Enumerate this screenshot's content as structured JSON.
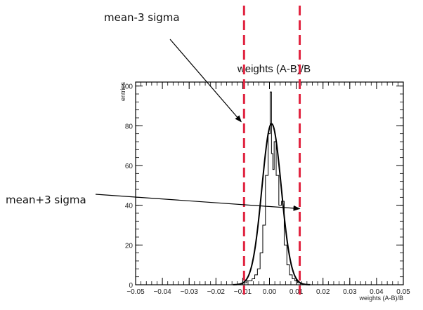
{
  "chart_data": {
    "type": "histogram",
    "title": "weights (A-B)/B",
    "xlabel": "weights (A-B)/B",
    "ylabel": "entries",
    "xlim": [
      -0.05,
      0.05
    ],
    "ylim": [
      0,
      102
    ],
    "xticks": [
      -0.05,
      -0.04,
      -0.03,
      -0.02,
      -0.01,
      0.0,
      0.01,
      0.02,
      0.03,
      0.04,
      0.05
    ],
    "xtick_labels": [
      "−0.05",
      "−0.04",
      "−0.03",
      "−0.02",
      "−0.01",
      "0.00",
      "0.01",
      "0.02",
      "0.03",
      "0.04",
      "0.05"
    ],
    "yticks": [
      0,
      20,
      40,
      60,
      80,
      100
    ],
    "ytick_labels": [
      "0",
      "20",
      "40",
      "60",
      "80",
      "100"
    ],
    "grid": false,
    "series": [
      {
        "kind": "histogram-steps",
        "bin_width": 0.001,
        "bins": [
          {
            "x": -0.009,
            "y": 1
          },
          {
            "x": -0.008,
            "y": 2
          },
          {
            "x": -0.007,
            "y": 2
          },
          {
            "x": -0.006,
            "y": 3
          },
          {
            "x": -0.005,
            "y": 5
          },
          {
            "x": -0.004,
            "y": 8
          },
          {
            "x": -0.003,
            "y": 16
          },
          {
            "x": -0.002,
            "y": 30
          },
          {
            "x": -0.001,
            "y": 55
          },
          {
            "x": 0.0,
            "y": 76
          },
          {
            "x": 0.0005,
            "y": 97
          },
          {
            "x": 0.001,
            "y": 66
          },
          {
            "x": 0.0015,
            "y": 58
          },
          {
            "x": 0.002,
            "y": 72
          },
          {
            "x": 0.003,
            "y": 55
          },
          {
            "x": 0.004,
            "y": 40
          },
          {
            "x": 0.005,
            "y": 42
          },
          {
            "x": 0.006,
            "y": 20
          },
          {
            "x": 0.007,
            "y": 10
          },
          {
            "x": 0.008,
            "y": 5
          },
          {
            "x": 0.009,
            "y": 3
          },
          {
            "x": 0.01,
            "y": 2
          },
          {
            "x": 0.011,
            "y": 1
          }
        ]
      },
      {
        "kind": "gaussian-fit",
        "mean": 0.0008,
        "sigma": 0.0036,
        "amplitude": 81
      }
    ],
    "vertical_lines": [
      {
        "x": -0.0095,
        "color": "#e0223f"
      },
      {
        "x": 0.0113,
        "color": "#e0223f"
      }
    ],
    "annotations": [
      {
        "text": "mean-3 sigma",
        "arrow_to": {
          "x": -0.0095,
          "y": 82
        }
      },
      {
        "text": "mean+3 sigma",
        "arrow_to": {
          "x": 0.0113,
          "y": 39
        }
      }
    ]
  }
}
